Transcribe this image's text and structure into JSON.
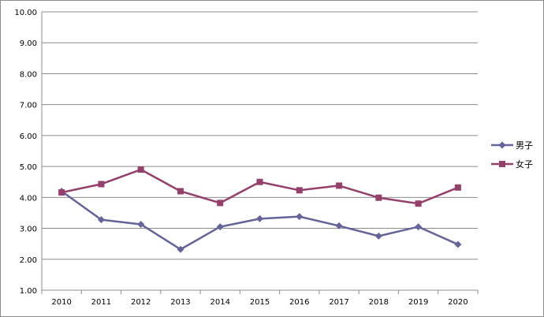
{
  "chart_data": {
    "type": "line",
    "x": [
      "2010",
      "2011",
      "2012",
      "2013",
      "2014",
      "2015",
      "2016",
      "2017",
      "2018",
      "2019",
      "2020"
    ],
    "series": [
      {
        "name": "男子",
        "color": "#64649a",
        "marker": "diamond",
        "values": [
          4.2,
          3.28,
          3.13,
          2.32,
          3.05,
          3.31,
          3.38,
          3.08,
          2.75,
          3.05,
          2.48
        ]
      },
      {
        "name": "女子",
        "color": "#953f6b",
        "marker": "square",
        "values": [
          4.16,
          4.43,
          4.9,
          4.2,
          3.82,
          4.5,
          4.23,
          4.38,
          3.99,
          3.8,
          4.32
        ]
      }
    ],
    "ylim": [
      1.0,
      10.0
    ],
    "yticks": [
      "1.00",
      "2.00",
      "3.00",
      "4.00",
      "5.00",
      "6.00",
      "7.00",
      "8.00",
      "9.00",
      "10.00"
    ],
    "title": "",
    "xlabel": "",
    "ylabel": "",
    "grid": true,
    "legend": "right"
  }
}
